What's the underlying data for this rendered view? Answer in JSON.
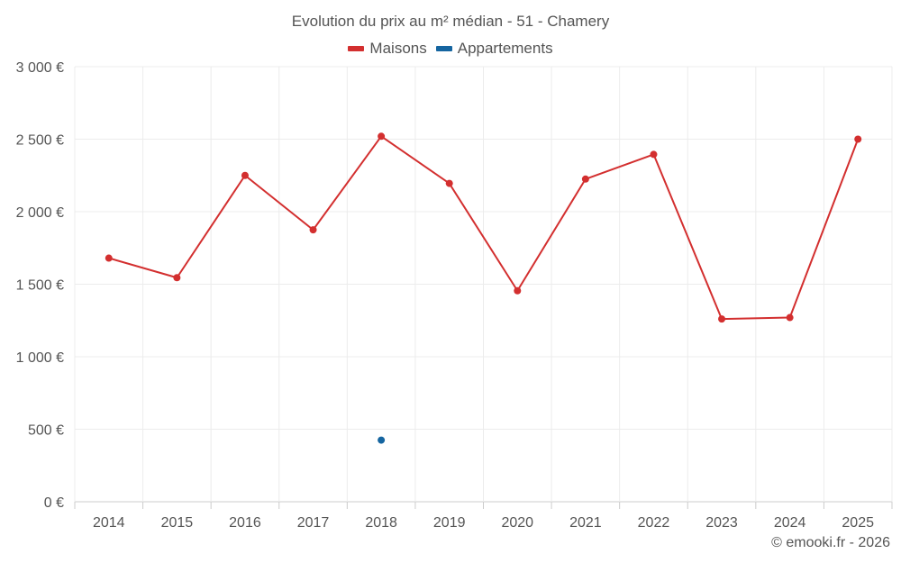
{
  "chart_data": {
    "type": "line",
    "title": "Evolution du prix au m² médian - 51 - Chamery",
    "categories": [
      "2014",
      "2015",
      "2016",
      "2017",
      "2018",
      "2019",
      "2020",
      "2021",
      "2022",
      "2023",
      "2024",
      "2025"
    ],
    "y_ticks": [
      0,
      500,
      1000,
      1500,
      2000,
      2500,
      3000
    ],
    "y_tick_labels": [
      "0 €",
      "500 €",
      "1 000 €",
      "1 500 €",
      "2 000 €",
      "2 500 €",
      "3 000 €"
    ],
    "ylim": [
      0,
      3000
    ],
    "grid": true,
    "legend_position": "top-center",
    "series": [
      {
        "name": "Maisons",
        "color": "#d32f2f",
        "values": [
          1680,
          1545,
          2250,
          1875,
          2520,
          2195,
          1455,
          2225,
          2395,
          1260,
          1270,
          2500
        ]
      },
      {
        "name": "Appartements",
        "color": "#1565a0",
        "values": [
          null,
          null,
          null,
          null,
          425,
          null,
          null,
          null,
          null,
          null,
          null,
          null
        ]
      }
    ]
  },
  "credit": "© emooki.fr - 2026"
}
